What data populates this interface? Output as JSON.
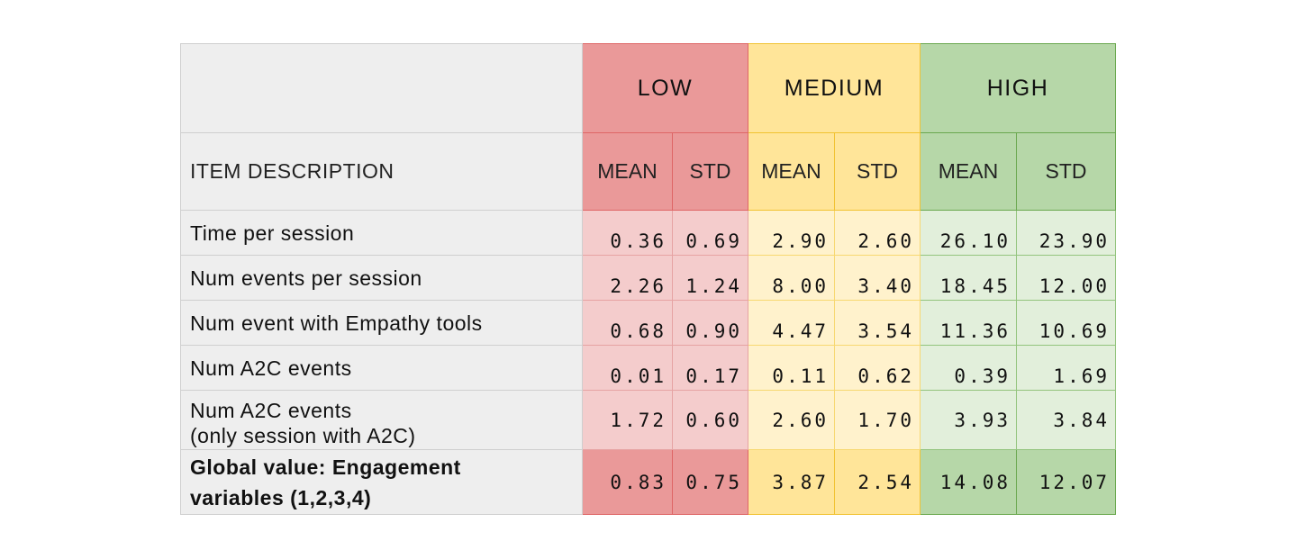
{
  "table": {
    "groups": [
      {
        "label": "LOW",
        "color": "#ea9999"
      },
      {
        "label": "MEDIUM",
        "color": "#ffe599"
      },
      {
        "label": "HIGH",
        "color": "#b6d7a8"
      }
    ],
    "subheaders": {
      "description": "ITEM DESCRIPTION",
      "mean": "MEAN",
      "std": "STD"
    },
    "rows": [
      {
        "label": "Time per session",
        "label2": "",
        "values": [
          "0.36",
          "0.69",
          "2.90",
          "2.60",
          "26.10",
          "23.90"
        ]
      },
      {
        "label": "Num events per session",
        "label2": "",
        "values": [
          "2.26",
          "1.24",
          "8.00",
          "3.40",
          "18.45",
          "12.00"
        ]
      },
      {
        "label": "Num event with Empathy tools",
        "label2": "",
        "values": [
          "0.68",
          "0.90",
          "4.47",
          "3.54",
          "11.36",
          "10.69"
        ]
      },
      {
        "label": "Num A2C events",
        "label2": "",
        "values": [
          "0.01",
          "0.17",
          "0.11",
          "0.62",
          "0.39",
          "1.69"
        ]
      },
      {
        "label": "Num A2C events",
        "label2": "(only session with A2C)",
        "values": [
          "1.72",
          "0.60",
          "2.60",
          "1.70",
          "3.93",
          "3.84"
        ]
      }
    ],
    "global": {
      "label": "Global value: Engagement",
      "label2": "variables (1,2,3,4)",
      "values": [
        "0.83",
        "0.75",
        "3.87",
        "2.54",
        "14.08",
        "12.07"
      ]
    }
  }
}
